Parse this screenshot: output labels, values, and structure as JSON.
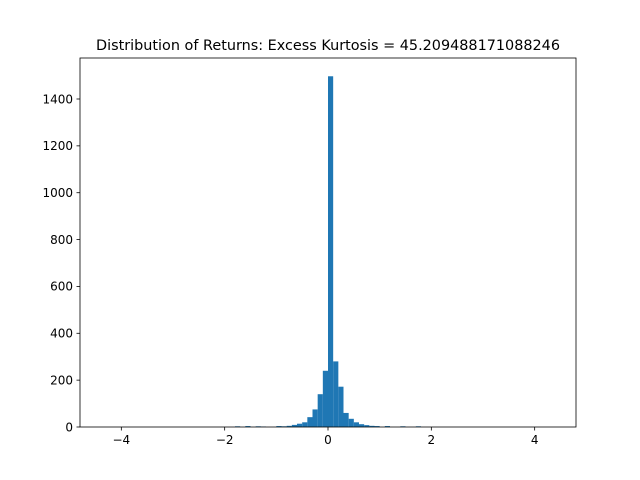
{
  "chart_data": {
    "type": "bar",
    "title": "Distribution of Returns: Excess Kurtosis = 45.209488171088246",
    "xlabel": "",
    "ylabel": "",
    "xlim": [
      -4.8,
      4.8
    ],
    "ylim": [
      0,
      1575
    ],
    "xticks": [
      -4,
      -2,
      0,
      2,
      4
    ],
    "xtick_labels": [
      "−4",
      "−2",
      "0",
      "2",
      "4"
    ],
    "yticks": [
      0,
      200,
      400,
      600,
      800,
      1000,
      1200,
      1400
    ],
    "ytick_labels": [
      "0",
      "200",
      "400",
      "600",
      "800",
      "1000",
      "1200",
      "1400"
    ],
    "bar_color": "#1f77b4",
    "grid": false,
    "legend": "none",
    "bins": [
      {
        "x0": -1.8,
        "x1": -1.7,
        "count": 3
      },
      {
        "x0": -1.6,
        "x1": -1.5,
        "count": 4
      },
      {
        "x0": -1.4,
        "x1": -1.3,
        "count": 3
      },
      {
        "x0": -1.3,
        "x1": -1.2,
        "count": 2
      },
      {
        "x0": -1.0,
        "x1": -0.9,
        "count": 4
      },
      {
        "x0": -0.9,
        "x1": -0.8,
        "count": 3
      },
      {
        "x0": -0.8,
        "x1": -0.7,
        "count": 5
      },
      {
        "x0": -0.7,
        "x1": -0.6,
        "count": 9
      },
      {
        "x0": -0.6,
        "x1": -0.5,
        "count": 14
      },
      {
        "x0": -0.5,
        "x1": -0.4,
        "count": 20
      },
      {
        "x0": -0.4,
        "x1": -0.3,
        "count": 42
      },
      {
        "x0": -0.3,
        "x1": -0.2,
        "count": 75
      },
      {
        "x0": -0.2,
        "x1": -0.1,
        "count": 140
      },
      {
        "x0": -0.1,
        "x1": 0.0,
        "count": 240
      },
      {
        "x0": 0.0,
        "x1": 0.1,
        "count": 1497
      },
      {
        "x0": 0.1,
        "x1": 0.2,
        "count": 280
      },
      {
        "x0": 0.2,
        "x1": 0.3,
        "count": 172
      },
      {
        "x0": 0.3,
        "x1": 0.4,
        "count": 60
      },
      {
        "x0": 0.4,
        "x1": 0.5,
        "count": 35
      },
      {
        "x0": 0.5,
        "x1": 0.6,
        "count": 20
      },
      {
        "x0": 0.6,
        "x1": 0.7,
        "count": 12
      },
      {
        "x0": 0.7,
        "x1": 0.8,
        "count": 8
      },
      {
        "x0": 0.8,
        "x1": 0.9,
        "count": 5
      },
      {
        "x0": 0.9,
        "x1": 1.0,
        "count": 4
      },
      {
        "x0": 1.1,
        "x1": 1.2,
        "count": 4
      },
      {
        "x0": 1.4,
        "x1": 1.5,
        "count": 3
      },
      {
        "x0": 1.7,
        "x1": 1.8,
        "count": 3
      }
    ]
  }
}
